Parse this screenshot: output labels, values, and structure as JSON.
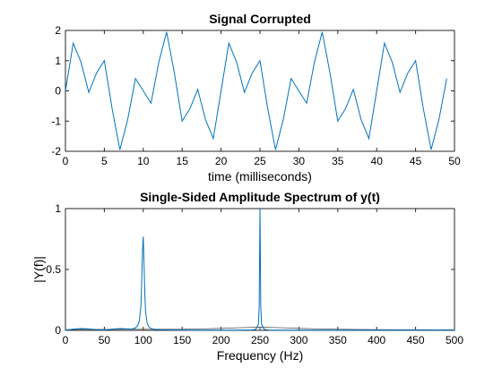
{
  "chart_data": [
    {
      "type": "line",
      "title": "Signal Corrupted",
      "xlabel": "time (milliseconds)",
      "ylabel": "",
      "xlim": [
        0,
        50
      ],
      "ylim": [
        -2,
        2
      ],
      "xticks": [
        0,
        5,
        10,
        15,
        20,
        25,
        30,
        35,
        40,
        45,
        50
      ],
      "yticks": [
        -2,
        -1,
        0,
        1,
        2
      ],
      "grid": false,
      "color": "#0072BD",
      "x": [
        0,
        1,
        2,
        3,
        4,
        5,
        6,
        7,
        8,
        9,
        10,
        11,
        12,
        13,
        14,
        15,
        16,
        17,
        18,
        19,
        20,
        21,
        22,
        23,
        24,
        25,
        26,
        27,
        28,
        29,
        30,
        31,
        32,
        33,
        34,
        35,
        36,
        37,
        38,
        39,
        40,
        41,
        42,
        43,
        44,
        45,
        46,
        47,
        48,
        49
      ],
      "y": [
        0.0,
        1.58,
        0.95,
        -0.05,
        0.59,
        1.0,
        -0.59,
        -1.95,
        -0.95,
        0.41,
        0.0,
        -0.41,
        0.95,
        1.95,
        0.59,
        -1.0,
        -0.59,
        0.05,
        -0.95,
        -1.58,
        0.0,
        1.58,
        0.95,
        -0.05,
        0.59,
        1.0,
        -0.59,
        -1.95,
        -0.95,
        0.41,
        0.0,
        -0.41,
        0.95,
        1.95,
        0.59,
        -1.0,
        -0.59,
        0.05,
        -0.95,
        -1.58,
        0.0,
        1.58,
        0.95,
        -0.05,
        0.59,
        1.0,
        -0.59,
        -1.95,
        -0.95,
        0.41
      ]
    },
    {
      "type": "line",
      "title": "Single-Sided Amplitude Spectrum of y(t)",
      "xlabel": "Frequency (Hz)",
      "ylabel": "|Y(f)|",
      "xlim": [
        0,
        500
      ],
      "ylim": [
        0,
        1
      ],
      "xticks": [
        0,
        50,
        100,
        150,
        200,
        250,
        300,
        350,
        400,
        450,
        500
      ],
      "yticks": [
        0,
        0.5,
        1
      ],
      "grid": false,
      "color": "#0072BD",
      "x": [
        0,
        10,
        20,
        30,
        40,
        50,
        60,
        70,
        80,
        85,
        90,
        93,
        95,
        97,
        98,
        99,
        100,
        101,
        102,
        103,
        105,
        107,
        110,
        115,
        120,
        130,
        140,
        150,
        160,
        170,
        180,
        190,
        200,
        210,
        220,
        230,
        240,
        245,
        248,
        249,
        250,
        251,
        252,
        255,
        260,
        270,
        280,
        290,
        300,
        310,
        320,
        330,
        340,
        350,
        360,
        370,
        380,
        390,
        400,
        410,
        420,
        430,
        440,
        450,
        460,
        470,
        480,
        490,
        500
      ],
      "y": [
        0.0,
        0.01,
        0.015,
        0.012,
        0.005,
        0.003,
        0.01,
        0.015,
        0.012,
        0.01,
        0.02,
        0.04,
        0.08,
        0.2,
        0.4,
        0.65,
        0.77,
        0.55,
        0.3,
        0.15,
        0.06,
        0.03,
        0.015,
        0.008,
        0.005,
        0.004,
        0.003,
        0.003,
        0.002,
        0.002,
        0.002,
        0.002,
        0.002,
        0.002,
        0.002,
        0.003,
        0.003,
        0.01,
        0.05,
        0.2,
        1.0,
        0.2,
        0.05,
        0.01,
        0.003,
        0.002,
        0.002,
        0.002,
        0.002,
        0.002,
        0.002,
        0.002,
        0.002,
        0.002,
        0.002,
        0.002,
        0.002,
        0.002,
        0.002,
        0.002,
        0.002,
        0.002,
        0.002,
        0.002,
        0.002,
        0.002,
        0.002,
        0.002,
        0.003
      ],
      "envelope": {
        "x": [
          0,
          25,
          50,
          75,
          100,
          125,
          150,
          175,
          200,
          225,
          250,
          275,
          300,
          325,
          350,
          375,
          400,
          425,
          450,
          475,
          500
        ],
        "y": [
          0.006,
          0.008,
          0.008,
          0.009,
          0.009,
          0.009,
          0.009,
          0.012,
          0.016,
          0.022,
          0.026,
          0.022,
          0.016,
          0.012,
          0.009,
          0.007,
          0.006,
          0.005,
          0.005,
          0.004,
          0.004
        ]
      }
    }
  ]
}
